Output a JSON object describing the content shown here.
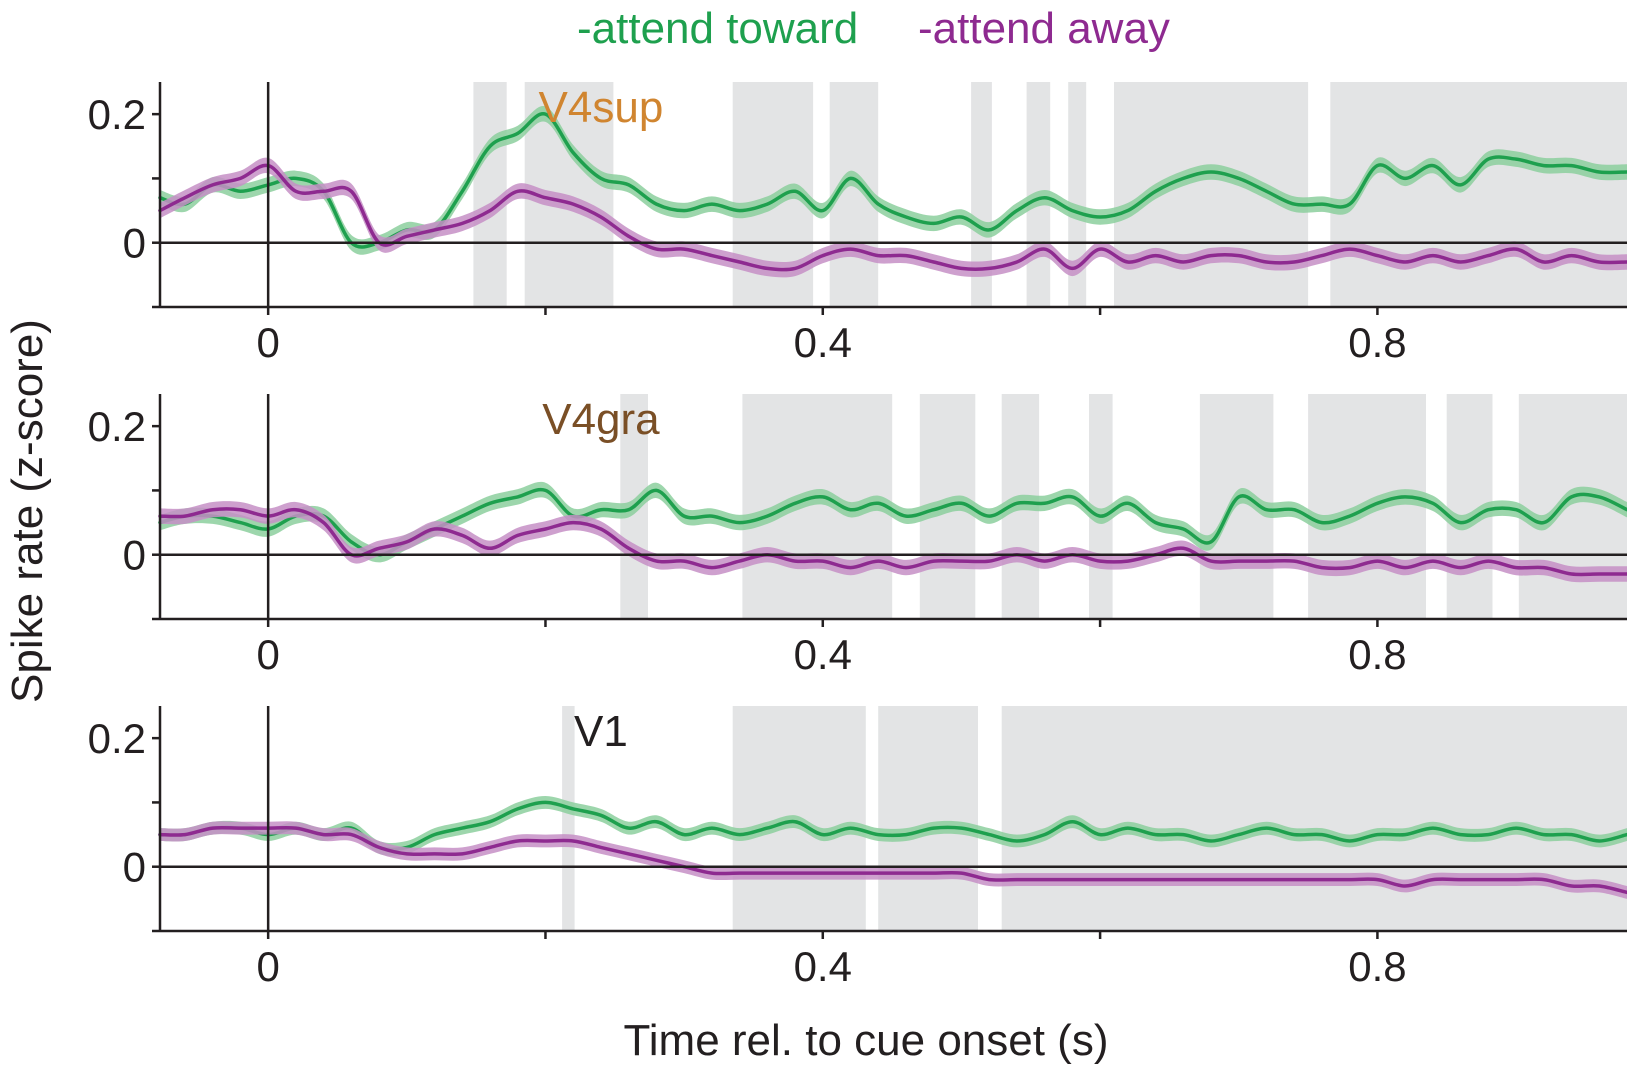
{
  "legend": {
    "toward_label": "-attend toward",
    "away_label": "-attend away"
  },
  "colors": {
    "toward": "#1ea04e",
    "toward_band": "#8ccf9d",
    "away": "#8e2a90",
    "away_band": "#c58fc6",
    "shade": "#e3e4e5",
    "axis": "#231f20",
    "label_v4sup": "#d08530",
    "label_v4gra": "#7a4f26",
    "label_v1": "#231f20"
  },
  "ylabel": "Spike rate (z-score)",
  "xlabel": "Time rel. to cue onset (s)",
  "chart_data": [
    {
      "type": "line",
      "title": "V4sup",
      "xlim": [
        -0.078,
        0.98
      ],
      "ylim": [
        -0.1,
        0.25
      ],
      "xticks": [
        0,
        0.2,
        0.4,
        0.6,
        0.8
      ],
      "xtick_labels": [
        "0",
        "",
        "0.4",
        "",
        "0.8"
      ],
      "yticks": [
        -0.1,
        0,
        0.1,
        0.2
      ],
      "ytick_labels": [
        "",
        "0",
        "",
        "0.2"
      ],
      "band_halfwidth": 0.012,
      "shaded_intervals": [
        [
          0.148,
          0.172
        ],
        [
          0.185,
          0.249
        ],
        [
          0.335,
          0.393
        ],
        [
          0.405,
          0.44
        ],
        [
          0.507,
          0.522
        ],
        [
          0.547,
          0.564
        ],
        [
          0.577,
          0.59
        ],
        [
          0.61,
          0.75
        ],
        [
          0.766,
          0.98
        ]
      ],
      "series": [
        {
          "name": "attend toward",
          "x": [
            -0.078,
            -0.06,
            -0.04,
            -0.02,
            0,
            0.02,
            0.04,
            0.06,
            0.08,
            0.1,
            0.12,
            0.14,
            0.16,
            0.18,
            0.2,
            0.22,
            0.24,
            0.26,
            0.28,
            0.3,
            0.32,
            0.34,
            0.36,
            0.38,
            0.4,
            0.42,
            0.44,
            0.46,
            0.48,
            0.5,
            0.52,
            0.54,
            0.56,
            0.58,
            0.6,
            0.62,
            0.64,
            0.66,
            0.68,
            0.7,
            0.72,
            0.74,
            0.76,
            0.78,
            0.8,
            0.82,
            0.84,
            0.86,
            0.88,
            0.9,
            0.92,
            0.94,
            0.96,
            0.98
          ],
          "y": [
            0.07,
            0.06,
            0.09,
            0.08,
            0.09,
            0.1,
            0.08,
            0.0,
            0.0,
            0.02,
            0.02,
            0.08,
            0.15,
            0.17,
            0.2,
            0.14,
            0.1,
            0.09,
            0.06,
            0.05,
            0.06,
            0.05,
            0.06,
            0.08,
            0.05,
            0.1,
            0.06,
            0.04,
            0.03,
            0.04,
            0.02,
            0.05,
            0.07,
            0.05,
            0.04,
            0.05,
            0.08,
            0.1,
            0.11,
            0.1,
            0.08,
            0.06,
            0.06,
            0.06,
            0.12,
            0.1,
            0.12,
            0.09,
            0.13,
            0.13,
            0.12,
            0.12,
            0.11,
            0.11
          ]
        },
        {
          "name": "attend away",
          "x": [
            -0.078,
            -0.06,
            -0.04,
            -0.02,
            0,
            0.02,
            0.04,
            0.06,
            0.08,
            0.1,
            0.12,
            0.14,
            0.16,
            0.18,
            0.2,
            0.22,
            0.24,
            0.26,
            0.28,
            0.3,
            0.32,
            0.34,
            0.36,
            0.38,
            0.4,
            0.42,
            0.44,
            0.46,
            0.48,
            0.5,
            0.52,
            0.54,
            0.56,
            0.58,
            0.6,
            0.62,
            0.64,
            0.66,
            0.68,
            0.7,
            0.72,
            0.74,
            0.76,
            0.78,
            0.8,
            0.82,
            0.84,
            0.86,
            0.88,
            0.9,
            0.92,
            0.94,
            0.96,
            0.98
          ],
          "y": [
            0.05,
            0.07,
            0.09,
            0.1,
            0.12,
            0.08,
            0.08,
            0.08,
            0.0,
            0.01,
            0.02,
            0.03,
            0.05,
            0.08,
            0.07,
            0.06,
            0.04,
            0.01,
            -0.01,
            -0.01,
            -0.02,
            -0.03,
            -0.04,
            -0.04,
            -0.02,
            -0.01,
            -0.02,
            -0.02,
            -0.03,
            -0.04,
            -0.04,
            -0.03,
            -0.01,
            -0.04,
            -0.01,
            -0.03,
            -0.02,
            -0.03,
            -0.02,
            -0.02,
            -0.03,
            -0.03,
            -0.02,
            -0.01,
            -0.02,
            -0.03,
            -0.02,
            -0.03,
            -0.02,
            -0.01,
            -0.03,
            -0.02,
            -0.03,
            -0.03
          ]
        }
      ]
    },
    {
      "type": "line",
      "title": "V4gra",
      "xlim": [
        -0.078,
        0.98
      ],
      "ylim": [
        -0.1,
        0.25
      ],
      "xticks": [
        0,
        0.2,
        0.4,
        0.6,
        0.8
      ],
      "xtick_labels": [
        "0",
        "",
        "0.4",
        "",
        "0.8"
      ],
      "yticks": [
        -0.1,
        0,
        0.1,
        0.2
      ],
      "ytick_labels": [
        "",
        "0",
        "",
        "0.2"
      ],
      "band_halfwidth": 0.012,
      "shaded_intervals": [
        [
          0.254,
          0.274
        ],
        [
          0.342,
          0.45
        ],
        [
          0.47,
          0.51
        ],
        [
          0.529,
          0.556
        ],
        [
          0.592,
          0.609
        ],
        [
          0.672,
          0.725
        ],
        [
          0.75,
          0.835
        ],
        [
          0.85,
          0.883
        ],
        [
          0.902,
          0.98
        ]
      ],
      "series": [
        {
          "name": "attend toward",
          "x": [
            -0.078,
            -0.06,
            -0.04,
            -0.02,
            0,
            0.02,
            0.04,
            0.06,
            0.08,
            0.1,
            0.12,
            0.14,
            0.16,
            0.18,
            0.2,
            0.22,
            0.24,
            0.26,
            0.28,
            0.3,
            0.32,
            0.34,
            0.36,
            0.38,
            0.4,
            0.42,
            0.44,
            0.46,
            0.48,
            0.5,
            0.52,
            0.54,
            0.56,
            0.58,
            0.6,
            0.62,
            0.64,
            0.66,
            0.68,
            0.7,
            0.72,
            0.74,
            0.76,
            0.78,
            0.8,
            0.82,
            0.84,
            0.86,
            0.88,
            0.9,
            0.92,
            0.94,
            0.96,
            0.98
          ],
          "y": [
            0.05,
            0.06,
            0.06,
            0.05,
            0.04,
            0.06,
            0.06,
            0.02,
            0.0,
            0.02,
            0.04,
            0.06,
            0.08,
            0.09,
            0.1,
            0.06,
            0.07,
            0.07,
            0.1,
            0.06,
            0.06,
            0.05,
            0.06,
            0.08,
            0.09,
            0.07,
            0.08,
            0.06,
            0.07,
            0.08,
            0.06,
            0.08,
            0.08,
            0.09,
            0.06,
            0.08,
            0.05,
            0.04,
            0.02,
            0.09,
            0.07,
            0.07,
            0.05,
            0.06,
            0.08,
            0.09,
            0.08,
            0.05,
            0.07,
            0.07,
            0.05,
            0.09,
            0.09,
            0.07
          ]
        },
        {
          "name": "attend away",
          "x": [
            -0.078,
            -0.06,
            -0.04,
            -0.02,
            0,
            0.02,
            0.04,
            0.06,
            0.08,
            0.1,
            0.12,
            0.14,
            0.16,
            0.18,
            0.2,
            0.22,
            0.24,
            0.26,
            0.28,
            0.3,
            0.32,
            0.34,
            0.36,
            0.38,
            0.4,
            0.42,
            0.44,
            0.46,
            0.48,
            0.5,
            0.52,
            0.54,
            0.56,
            0.58,
            0.6,
            0.62,
            0.64,
            0.66,
            0.68,
            0.7,
            0.72,
            0.74,
            0.76,
            0.78,
            0.8,
            0.82,
            0.84,
            0.86,
            0.88,
            0.9,
            0.92,
            0.94,
            0.96,
            0.98
          ],
          "y": [
            0.06,
            0.06,
            0.07,
            0.07,
            0.06,
            0.07,
            0.05,
            0.0,
            0.01,
            0.02,
            0.04,
            0.03,
            0.01,
            0.03,
            0.04,
            0.05,
            0.04,
            0.01,
            -0.01,
            -0.01,
            -0.02,
            -0.01,
            0.0,
            -0.01,
            -0.01,
            -0.02,
            -0.01,
            -0.02,
            -0.01,
            -0.01,
            -0.01,
            0.0,
            -0.01,
            0.0,
            -0.01,
            -0.01,
            0.0,
            0.01,
            -0.01,
            -0.01,
            -0.01,
            -0.01,
            -0.02,
            -0.02,
            -0.01,
            -0.02,
            -0.01,
            -0.02,
            -0.01,
            -0.02,
            -0.02,
            -0.03,
            -0.03,
            -0.03
          ]
        }
      ]
    },
    {
      "type": "line",
      "title": "V1",
      "xlim": [
        -0.078,
        0.98
      ],
      "ylim": [
        -0.1,
        0.25
      ],
      "xticks": [
        0,
        0.2,
        0.4,
        0.6,
        0.8
      ],
      "xtick_labels": [
        "0",
        "",
        "0.4",
        "",
        "0.8"
      ],
      "yticks": [
        -0.1,
        0,
        0.1,
        0.2
      ],
      "ytick_labels": [
        "",
        "0",
        "",
        "0.2"
      ],
      "band_halfwidth": 0.01,
      "shaded_intervals": [
        [
          0.212,
          0.221
        ],
        [
          0.335,
          0.431
        ],
        [
          0.44,
          0.512
        ],
        [
          0.529,
          0.98
        ]
      ],
      "series": [
        {
          "name": "attend toward",
          "x": [
            -0.078,
            -0.06,
            -0.04,
            -0.02,
            0,
            0.02,
            0.04,
            0.06,
            0.08,
            0.1,
            0.12,
            0.14,
            0.16,
            0.18,
            0.2,
            0.22,
            0.24,
            0.26,
            0.28,
            0.3,
            0.32,
            0.34,
            0.36,
            0.38,
            0.4,
            0.42,
            0.44,
            0.46,
            0.48,
            0.5,
            0.52,
            0.54,
            0.56,
            0.58,
            0.6,
            0.62,
            0.64,
            0.66,
            0.68,
            0.7,
            0.72,
            0.74,
            0.76,
            0.78,
            0.8,
            0.82,
            0.84,
            0.86,
            0.88,
            0.9,
            0.92,
            0.94,
            0.96,
            0.98
          ],
          "y": [
            0.05,
            0.05,
            0.06,
            0.06,
            0.05,
            0.06,
            0.05,
            0.06,
            0.03,
            0.03,
            0.05,
            0.06,
            0.07,
            0.09,
            0.1,
            0.09,
            0.08,
            0.06,
            0.07,
            0.05,
            0.06,
            0.05,
            0.06,
            0.07,
            0.05,
            0.06,
            0.05,
            0.05,
            0.06,
            0.06,
            0.05,
            0.04,
            0.05,
            0.07,
            0.05,
            0.06,
            0.05,
            0.05,
            0.04,
            0.05,
            0.06,
            0.05,
            0.05,
            0.04,
            0.05,
            0.05,
            0.06,
            0.05,
            0.05,
            0.06,
            0.05,
            0.05,
            0.04,
            0.05
          ]
        },
        {
          "name": "attend away",
          "x": [
            -0.078,
            -0.06,
            -0.04,
            -0.02,
            0,
            0.02,
            0.04,
            0.06,
            0.08,
            0.1,
            0.12,
            0.14,
            0.16,
            0.18,
            0.2,
            0.22,
            0.24,
            0.26,
            0.28,
            0.3,
            0.32,
            0.34,
            0.36,
            0.38,
            0.4,
            0.42,
            0.44,
            0.46,
            0.48,
            0.5,
            0.52,
            0.54,
            0.56,
            0.58,
            0.6,
            0.62,
            0.64,
            0.66,
            0.68,
            0.7,
            0.72,
            0.74,
            0.76,
            0.78,
            0.8,
            0.82,
            0.84,
            0.86,
            0.88,
            0.9,
            0.92,
            0.94,
            0.96,
            0.98
          ],
          "y": [
            0.05,
            0.05,
            0.06,
            0.06,
            0.06,
            0.06,
            0.05,
            0.05,
            0.03,
            0.02,
            0.02,
            0.02,
            0.03,
            0.04,
            0.04,
            0.04,
            0.03,
            0.02,
            0.01,
            0.0,
            -0.01,
            -0.01,
            -0.01,
            -0.01,
            -0.01,
            -0.01,
            -0.01,
            -0.01,
            -0.01,
            -0.01,
            -0.02,
            -0.02,
            -0.02,
            -0.02,
            -0.02,
            -0.02,
            -0.02,
            -0.02,
            -0.02,
            -0.02,
            -0.02,
            -0.02,
            -0.02,
            -0.02,
            -0.02,
            -0.03,
            -0.02,
            -0.02,
            -0.02,
            -0.02,
            -0.02,
            -0.03,
            -0.03,
            -0.04
          ]
        }
      ]
    }
  ]
}
